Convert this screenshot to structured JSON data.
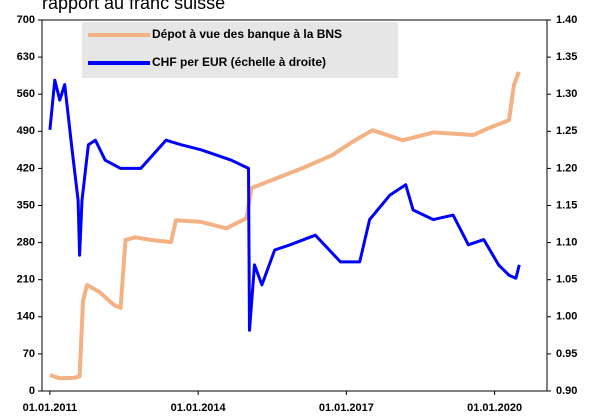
{
  "chart_data": {
    "type": "line",
    "title": "rapport au franc suisse",
    "xlim": [
      2010.84,
      2021.06
    ],
    "xticks": [
      {
        "value": 2011,
        "label": "01.01.2011"
      },
      {
        "value": 2014,
        "label": "01.01.2014"
      },
      {
        "value": 2017,
        "label": "01.01.2017"
      },
      {
        "value": 2020,
        "label": "01.01.2020"
      }
    ],
    "ylim": [
      0,
      700
    ],
    "yticks": [
      0,
      70,
      140,
      210,
      280,
      350,
      420,
      490,
      560,
      630,
      700
    ],
    "y2lim": [
      0.9,
      1.4
    ],
    "y2ticks": [
      {
        "value": 0.9,
        "label": "0.90"
      },
      {
        "value": 0.95,
        "label": "0.95"
      },
      {
        "value": 1.0,
        "label": "1.00"
      },
      {
        "value": 1.05,
        "label": "1.05"
      },
      {
        "value": 1.1,
        "label": "1.10"
      },
      {
        "value": 1.15,
        "label": "1.15"
      },
      {
        "value": 1.2,
        "label": "1.20"
      },
      {
        "value": 1.25,
        "label": "1.25"
      },
      {
        "value": 1.3,
        "label": "1.30"
      },
      {
        "value": 1.35,
        "label": "1.35"
      },
      {
        "value": 1.4,
        "label": "1.40"
      }
    ],
    "series": [
      {
        "name": "Dépot à vue des banque à la BNS",
        "color": "#f4b183",
        "x": [
          2011.0,
          2011.2,
          2011.5,
          2011.6,
          2011.67,
          2011.75,
          2012.0,
          2012.3,
          2012.43,
          2012.53,
          2012.73,
          2013.04,
          2013.45,
          2013.55,
          2014.06,
          2014.57,
          2014.98,
          2015.08,
          2015.49,
          2016.1,
          2016.71,
          2017.12,
          2017.53,
          2018.14,
          2018.76,
          2019.57,
          2019.88,
          2020.18,
          2020.29,
          2020.39,
          2020.49
        ],
        "values": [
          30,
          24,
          25,
          28,
          170,
          200,
          187,
          162,
          157,
          285,
          290,
          285,
          281,
          322,
          319,
          307,
          326,
          383,
          398,
          420,
          445,
          470,
          492,
          473,
          488,
          483,
          496,
          507,
          511,
          577,
          602
        ]
      },
      {
        "name": "CHF per EUR (échelle à droite)",
        "color": "#0000ff",
        "axis": "y2",
        "x": [
          2011.0,
          2011.1,
          2011.2,
          2011.3,
          2011.45,
          2011.57,
          2011.6,
          2011.65,
          2011.78,
          2011.92,
          2012.12,
          2012.43,
          2012.84,
          2013.35,
          2013.65,
          2014.06,
          2014.67,
          2015.02,
          2015.04,
          2015.14,
          2015.29,
          2015.55,
          2015.86,
          2016.37,
          2016.88,
          2017.27,
          2017.47,
          2017.88,
          2018.2,
          2018.35,
          2018.76,
          2019.16,
          2019.47,
          2019.78,
          2020.08,
          2020.29,
          2020.43,
          2020.5
        ],
        "values": [
          1.252,
          1.319,
          1.292,
          1.313,
          1.225,
          1.157,
          1.083,
          1.157,
          1.232,
          1.238,
          1.211,
          1.2,
          1.2,
          1.238,
          1.232,
          1.225,
          1.211,
          1.2,
          0.982,
          1.07,
          1.043,
          1.09,
          1.097,
          1.11,
          1.074,
          1.074,
          1.131,
          1.164,
          1.178,
          1.144,
          1.131,
          1.137,
          1.097,
          1.104,
          1.07,
          1.056,
          1.052,
          1.07
        ]
      }
    ]
  }
}
